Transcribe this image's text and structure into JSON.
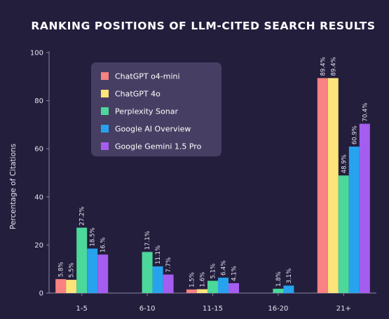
{
  "chart_data": {
    "type": "bar",
    "title": "RANKING POSITIONS OF LLM-CITED SEARCH RESULTS",
    "xlabel": "",
    "ylabel": "Percentage of Citations",
    "ylim": [
      0,
      100
    ],
    "yticks": [
      0,
      20,
      40,
      60,
      80,
      100
    ],
    "grid": false,
    "legend_position": "top-left",
    "categories": [
      "1-5",
      "6-10",
      "11-15",
      "16-20",
      "21+"
    ],
    "series": [
      {
        "name": "ChatGPT o4-mini",
        "color": "#f98282",
        "values": [
          5.8,
          null,
          1.5,
          null,
          89.4
        ],
        "labels": [
          "5.8%",
          "",
          "1.5%",
          "",
          "89.4%"
        ]
      },
      {
        "name": "ChatGPT 4o",
        "color": "#fde47a",
        "values": [
          5.5,
          null,
          1.6,
          null,
          89.4
        ],
        "labels": [
          "5.5%",
          "",
          "1.6%",
          "",
          "89.4%"
        ]
      },
      {
        "name": "Perplexity Sonar",
        "color": "#4cd89a",
        "values": [
          27.2,
          17.1,
          5.1,
          1.8,
          48.9
        ],
        "labels": [
          "27.2%",
          "17.1%",
          "5.1%",
          "1.8%",
          "48.9%"
        ]
      },
      {
        "name": "Google AI Overview",
        "color": "#27a3ee",
        "values": [
          18.5,
          11.1,
          6.4,
          3.1,
          60.9
        ],
        "labels": [
          "18.5%",
          "11.1%",
          "6.4%",
          "3.1%",
          "60.9%"
        ]
      },
      {
        "name": "Google Gemini 1.5 Pro",
        "color": "#a55df0",
        "values": [
          16,
          7.7,
          4.1,
          null,
          70.4
        ],
        "labels": [
          "16.%",
          "7.7%",
          "4.1%",
          "",
          "70.4%"
        ]
      }
    ]
  }
}
